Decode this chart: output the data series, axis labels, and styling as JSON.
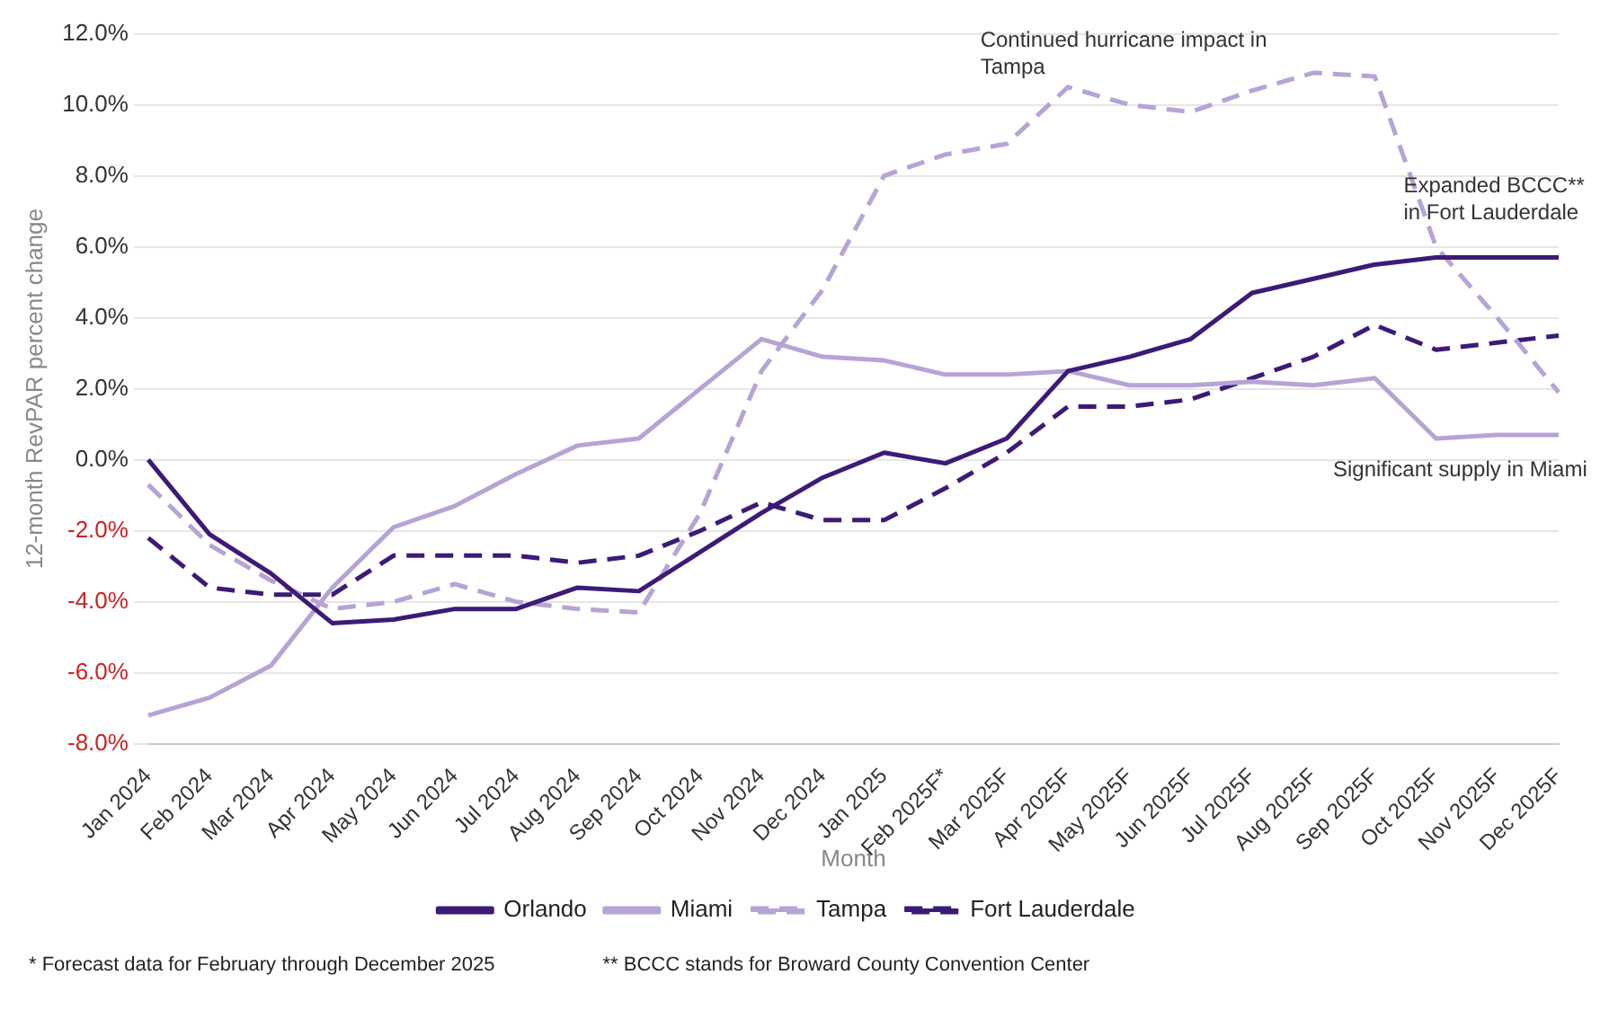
{
  "chart_data": {
    "type": "line",
    "categories": [
      "Jan 2024",
      "Feb 2024",
      "Mar 2024",
      "Apr 2024",
      "May 2024",
      "Jun 2024",
      "Jul 2024",
      "Aug 2024",
      "Sep 2024",
      "Oct 2024",
      "Nov 2024",
      "Dec 2024",
      "Jan 2025",
      "Feb 2025F*",
      "Mar 2025F",
      "Apr 2025F",
      "May 2025F",
      "Jun 2025F",
      "Jul 2025F",
      "Aug 2025F",
      "Sep 2025F",
      "Oct 2025F",
      "Nov 2025F",
      "Dec 2025F"
    ],
    "series": [
      {
        "name": "Orlando",
        "color": "#3d1a78",
        "line_style": "solid",
        "values": [
          0.0,
          -2.1,
          -3.2,
          -4.6,
          -4.5,
          -4.2,
          -4.2,
          -3.6,
          -3.7,
          -2.6,
          -1.5,
          -0.5,
          0.2,
          -0.1,
          0.6,
          2.5,
          2.9,
          3.4,
          4.7,
          5.1,
          5.5,
          5.7,
          5.7,
          5.7
        ]
      },
      {
        "name": "Miami",
        "color": "#b7a3d6",
        "line_style": "solid",
        "values": [
          -7.2,
          -6.7,
          -5.8,
          -3.6,
          -1.9,
          -1.3,
          -0.4,
          0.4,
          0.6,
          2.0,
          3.4,
          2.9,
          2.8,
          2.4,
          2.4,
          2.5,
          2.1,
          2.1,
          2.2,
          2.1,
          2.3,
          0.6,
          0.7,
          0.7
        ]
      },
      {
        "name": "Tampa",
        "color": "#b7a3d6",
        "line_style": "dashed",
        "values": [
          -0.7,
          -2.4,
          -3.4,
          -4.2,
          -4.0,
          -3.5,
          -4.0,
          -4.2,
          -4.3,
          -1.5,
          2.5,
          4.8,
          8.0,
          8.6,
          8.9,
          10.5,
          10.0,
          9.8,
          10.4,
          10.9,
          10.8,
          6.0,
          4.0,
          1.9
        ]
      },
      {
        "name": "Fort Lauderdale",
        "color": "#3d1a78",
        "line_style": "dashed",
        "values": [
          -2.2,
          -3.6,
          -3.8,
          -3.8,
          -2.7,
          -2.7,
          -2.7,
          -2.9,
          -2.7,
          -2.0,
          -1.2,
          -1.7,
          -1.7,
          -0.8,
          0.2,
          1.5,
          1.5,
          1.7,
          2.3,
          2.9,
          3.8,
          3.1,
          3.3,
          3.5
        ]
      }
    ],
    "xlabel": "Month",
    "ylabel": "12-month RevPAR percent change",
    "ylim": [
      -8,
      12
    ],
    "yticks": [
      {
        "value": -8,
        "label": "-8.0%"
      },
      {
        "value": -6,
        "label": "-6.0%"
      },
      {
        "value": -4,
        "label": "-4.0%"
      },
      {
        "value": -2,
        "label": "-2.0%"
      },
      {
        "value": 0,
        "label": "0.0%"
      },
      {
        "value": 2,
        "label": "2.0%"
      },
      {
        "value": 4,
        "label": "4.0%"
      },
      {
        "value": 6,
        "label": "6.0%"
      },
      {
        "value": 8,
        "label": "8.0%"
      },
      {
        "value": 10,
        "label": "10.0%"
      },
      {
        "value": 12,
        "label": "12.0%"
      }
    ],
    "grid": "y",
    "legend": "bottom",
    "marker": "none",
    "annotations": [
      "Continued hurricane impact in\nTampa",
      "Expanded BCCC**\nin Fort Lauderdale",
      "Significant supply in Miami",
      "* Forecast data for February through December 2025",
      "** BCCC stands for Broward County Convention Center"
    ]
  }
}
